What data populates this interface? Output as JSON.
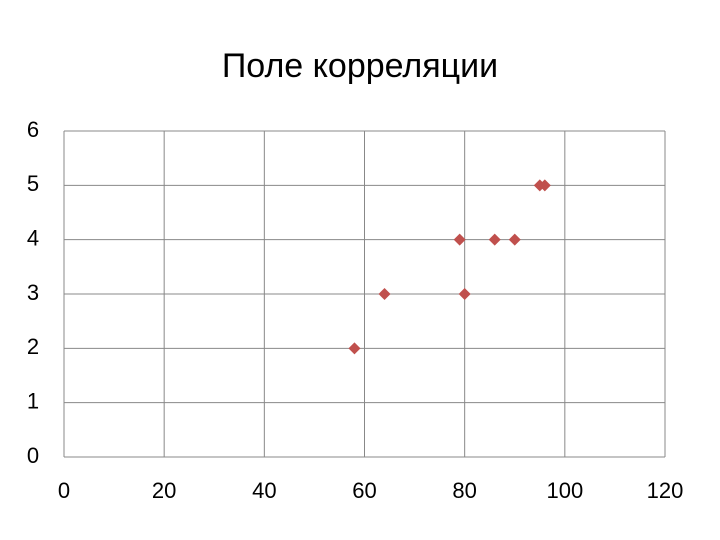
{
  "chart_data": {
    "type": "scatter",
    "title": "Поле корреляции",
    "x": [
      58,
      64,
      80,
      79,
      86,
      90,
      95,
      96
    ],
    "series": [
      {
        "color": "#c0504d",
        "values": [
          2,
          3,
          3,
          4,
          4,
          4,
          5,
          5
        ]
      }
    ],
    "xlim": [
      0,
      120
    ],
    "xticks": [
      0,
      20,
      40,
      60,
      80,
      100,
      120
    ],
    "ylim": [
      0,
      6
    ],
    "yticks": [
      0,
      1,
      2,
      3,
      4,
      5,
      6
    ],
    "grid": true,
    "marker": "diamond"
  }
}
